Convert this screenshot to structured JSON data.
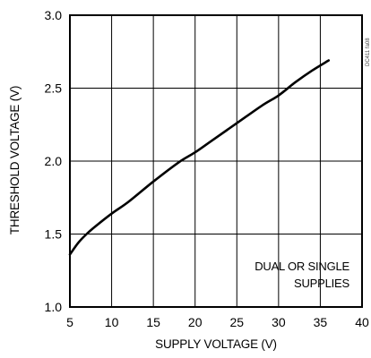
{
  "chart_data": {
    "type": "line",
    "title": "",
    "xlabel": "SUPPLY VOLTAGE (V)",
    "ylabel": "THRESHOLD VOLTAGE (V)",
    "xlim": [
      5,
      40
    ],
    "ylim": [
      1.0,
      3.0
    ],
    "x_ticks": [
      5,
      10,
      15,
      20,
      25,
      30,
      35,
      40
    ],
    "x_tick_labels": [
      "5",
      "10",
      "15",
      "20",
      "25",
      "30",
      "35",
      "40"
    ],
    "y_ticks": [
      1.0,
      1.5,
      2.0,
      2.5,
      3.0
    ],
    "y_tick_labels": [
      "1.0",
      "1.5",
      "2.0",
      "2.5",
      "3.0"
    ],
    "grid": true,
    "annotation_lines": [
      "DUAL OR SINGLE",
      "SUPPLIES"
    ],
    "figure_code": "DC411 fa08",
    "series": [
      {
        "x": [
          5,
          6,
          7,
          8,
          10,
          12,
          15,
          18,
          20,
          22,
          25,
          28,
          30,
          32,
          34,
          36
        ],
        "y": [
          1.36,
          1.44,
          1.5,
          1.55,
          1.64,
          1.72,
          1.86,
          1.99,
          2.06,
          2.14,
          2.26,
          2.38,
          2.45,
          2.54,
          2.62,
          2.69
        ]
      }
    ]
  }
}
